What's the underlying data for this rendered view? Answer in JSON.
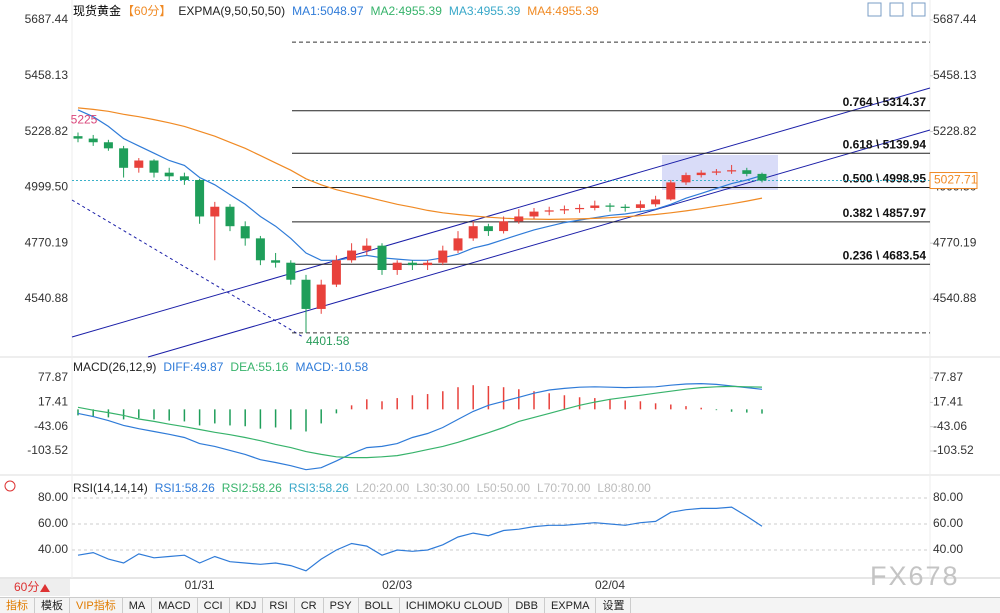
{
  "header": {
    "symbol": "现货黄金",
    "period": "【60分】"
  },
  "chart_data": [
    {
      "type": "candlestick",
      "title": "EXPMA(9,50,50,50)",
      "legend": [
        {
          "text": "MA1:5048.97",
          "color": "#2f7bd8"
        },
        {
          "text": "MA2:4955.39",
          "color": "#37b36b"
        },
        {
          "text": "MA3:4955.39",
          "color": "#39a8c9"
        },
        {
          "text": "MA4:4955.39",
          "color": "#f08a24"
        }
      ],
      "categories": [
        null,
        null,
        null,
        null,
        null,
        null,
        null,
        null,
        "01/31",
        null,
        null,
        null,
        null,
        null,
        null,
        null,
        null,
        null,
        null,
        null,
        null,
        "02/03",
        null,
        null,
        null,
        null,
        null,
        null,
        null,
        null,
        null,
        null,
        null,
        null,
        null,
        "02/04",
        null,
        null,
        null,
        null,
        null,
        null,
        null,
        null,
        null,
        null
      ],
      "ohlc": [
        [
          5210,
          5225,
          5185,
          5200
        ],
        [
          5200,
          5215,
          5170,
          5185
        ],
        [
          5185,
          5195,
          5150,
          5160
        ],
        [
          5160,
          5170,
          5040,
          5080
        ],
        [
          5080,
          5120,
          5060,
          5110
        ],
        [
          5110,
          5115,
          5040,
          5060
        ],
        [
          5060,
          5080,
          5030,
          5045
        ],
        [
          5045,
          5060,
          5010,
          5030
        ],
        [
          5030,
          5035,
          4850,
          4880
        ],
        [
          4880,
          4940,
          4700,
          4920
        ],
        [
          4920,
          4930,
          4820,
          4840
        ],
        [
          4840,
          4860,
          4760,
          4790
        ],
        [
          4790,
          4800,
          4680,
          4700
        ],
        [
          4700,
          4730,
          4670,
          4690
        ],
        [
          4690,
          4700,
          4600,
          4620
        ],
        [
          4620,
          4640,
          4401.58,
          4500
        ],
        [
          4500,
          4620,
          4480,
          4600
        ],
        [
          4600,
          4720,
          4590,
          4700
        ],
        [
          4700,
          4770,
          4690,
          4740
        ],
        [
          4740,
          4790,
          4720,
          4760
        ],
        [
          4760,
          4770,
          4640,
          4660
        ],
        [
          4660,
          4700,
          4640,
          4690
        ],
        [
          4690,
          4700,
          4660,
          4680
        ],
        [
          4680,
          4700,
          4660,
          4690
        ],
        [
          4690,
          4760,
          4680,
          4740
        ],
        [
          4740,
          4820,
          4730,
          4790
        ],
        [
          4790,
          4860,
          4780,
          4840
        ],
        [
          4840,
          4850,
          4800,
          4820
        ],
        [
          4820,
          4880,
          4810,
          4860
        ],
        [
          4860,
          4910,
          4850,
          4880
        ],
        [
          4880,
          4915,
          4870,
          4900
        ],
        [
          4900,
          4920,
          4885,
          4905
        ],
        [
          4905,
          4925,
          4890,
          4910
        ],
        [
          4910,
          4930,
          4895,
          4915
        ],
        [
          4915,
          4945,
          4905,
          4925
        ],
        [
          4925,
          4935,
          4900,
          4920
        ],
        [
          4920,
          4930,
          4900,
          4915
        ],
        [
          4915,
          4945,
          4905,
          4930
        ],
        [
          4930,
          4965,
          4920,
          4950
        ],
        [
          4950,
          5030,
          4945,
          5020
        ],
        [
          5020,
          5060,
          5010,
          5050
        ],
        [
          5050,
          5070,
          5040,
          5060
        ],
        [
          5060,
          5075,
          5050,
          5065
        ],
        [
          5065,
          5091.63,
          5055,
          5070
        ],
        [
          5070,
          5080,
          5045,
          5055
        ],
        [
          5055,
          5060,
          5020,
          5027.71
        ]
      ],
      "up_color": "#e8413b",
      "down_color": "#1f9e5a",
      "lines": [
        {
          "color": "#2f7bd8",
          "values": [
            5318,
            5290,
            5250,
            5200,
            5170,
            5140,
            5110,
            5090,
            5040,
            5010,
            4970,
            4930,
            4880,
            4840,
            4790,
            4730,
            4700,
            4700,
            4710,
            4720,
            4710,
            4705,
            4700,
            4700,
            4710,
            4725,
            4750,
            4765,
            4785,
            4805,
            4825,
            4840,
            4855,
            4865,
            4875,
            4885,
            4890,
            4900,
            4910,
            4930,
            4955,
            4975,
            4995,
            5015,
            5030,
            5048.97
          ]
        },
        {
          "color": "#f08a24",
          "values": [
            5326,
            5320,
            5312,
            5300,
            5290,
            5278,
            5265,
            5250,
            5230,
            5210,
            5185,
            5160,
            5130,
            5100,
            5070,
            5035,
            5010,
            4990,
            4975,
            4960,
            4945,
            4930,
            4918,
            4905,
            4895,
            4888,
            4882,
            4877,
            4873,
            4870,
            4869,
            4868,
            4869,
            4870,
            4872,
            4875,
            4879,
            4883,
            4888,
            4895,
            4903,
            4912,
            4922,
            4932,
            4943,
            4955.39
          ]
        }
      ],
      "ylim": [
        4310.7,
        5769.6
      ],
      "yticks": [
        5687.44,
        5458.13,
        5228.82,
        {
          "value": 4999.5,
          "label": "4999.50"
        },
        4770.19,
        4540.88
      ],
      "fibonacci": {
        "levels": [
          {
            "value": 5314.37,
            "label": "0.764 \\ 5314.37"
          },
          {
            "value": 5139.94,
            "label": "0.618 \\ 5139.94"
          },
          {
            "value": 4998.95,
            "label": "0.500 \\ 4998.95"
          },
          {
            "value": 4857.97,
            "label": "0.382 \\ 4857.97"
          },
          {
            "value": 4683.54,
            "label": "0.236 \\ 4683.54"
          }
        ],
        "range": [
          4401.58,
          5596.32
        ]
      }
    },
    {
      "type": "macd",
      "title": "MACD(26,12,9)",
      "legend": [
        {
          "text": "DIFF:49.87",
          "color": "#2f7bd8"
        },
        {
          "text": "DEA:55.16",
          "color": "#37b36b"
        },
        {
          "text": "MACD:-10.58",
          "color": "#2f7bd8"
        }
      ],
      "histogram": [
        -15,
        -18,
        -20,
        -25,
        -22,
        -25,
        -28,
        -30,
        -40,
        -35,
        -40,
        -42,
        -48,
        -45,
        -50,
        -55,
        -35,
        -10,
        10,
        25,
        20,
        28,
        35,
        38,
        45,
        55,
        60,
        58,
        55,
        50,
        45,
        40,
        35,
        30,
        28,
        25,
        22,
        20,
        15,
        12,
        8,
        4,
        -2,
        -6,
        -8,
        -10.58
      ],
      "up_color": "#e8413b",
      "down_color": "#1f9e5a",
      "lines": [
        {
          "color": "#2f7bd8",
          "values": [
            -10,
            -18,
            -28,
            -40,
            -48,
            -55,
            -62,
            -70,
            -85,
            -92,
            -102,
            -112,
            -125,
            -132,
            -140,
            -150,
            -145,
            -128,
            -110,
            -95,
            -92,
            -85,
            -70,
            -60,
            -45,
            -25,
            -5,
            10,
            20,
            30,
            40,
            48,
            52,
            55,
            56,
            55,
            54,
            55,
            56,
            60,
            63,
            64,
            62,
            58,
            54,
            49.87
          ]
        },
        {
          "color": "#37b36b",
          "values": [
            5,
            -2,
            -8,
            -15,
            -24,
            -30,
            -37,
            -43,
            -50,
            -57,
            -63,
            -70,
            -78,
            -87,
            -95,
            -105,
            -112,
            -118,
            -120,
            -120,
            -118,
            -115,
            -108,
            -100,
            -92,
            -82,
            -70,
            -58,
            -45,
            -30,
            -20,
            -10,
            0,
            10,
            18,
            25,
            30,
            35,
            40,
            45,
            50,
            54,
            56,
            57,
            56,
            55.16
          ]
        }
      ],
      "ylim": [
        -150.7,
        122.6
      ],
      "yticks": [
        77.87,
        17.41,
        -43.06,
        -103.52
      ]
    },
    {
      "type": "rsi",
      "title": "RSI(14,14,14)",
      "legend": [
        {
          "text": "RSI1:58.26",
          "color": "#2f7bd8"
        },
        {
          "text": "RSI2:58.26",
          "color": "#37b36b"
        },
        {
          "text": "RSI3:58.26",
          "color": "#39a8c9"
        },
        {
          "text": "L20:20.00",
          "color": "#bbbbbb"
        },
        {
          "text": "L30:30.00",
          "color": "#bbbbbb"
        },
        {
          "text": "L50:50.00",
          "color": "#bbbbbb"
        },
        {
          "text": "L70:70.00",
          "color": "#bbbbbb"
        },
        {
          "text": "L80:80.00",
          "color": "#bbbbbb"
        }
      ],
      "lines": [
        {
          "color": "#2f7bd8",
          "values": [
            36,
            38,
            33,
            30,
            37,
            34,
            35,
            36,
            30,
            35,
            31,
            30,
            29,
            30,
            28,
            24,
            33,
            40,
            45,
            43,
            36,
            40,
            39,
            40,
            44,
            50,
            53,
            51,
            55,
            56,
            58,
            59,
            59,
            60,
            61,
            60,
            59,
            61,
            62,
            69,
            71,
            72,
            72,
            73,
            66,
            58.26
          ]
        }
      ],
      "ylim": [
        18.5,
        93.8
      ],
      "yticks": [
        {
          "value": 80,
          "label": "80.00"
        },
        {
          "value": 60,
          "label": "60.00"
        },
        {
          "value": 40,
          "label": "40.00"
        }
      ],
      "grid": true
    }
  ],
  "footer": {
    "period": "60分",
    "watermark": "FX678",
    "toolbar": [
      "指标",
      "模板",
      "VIP指标",
      "MA",
      "MACD",
      "CCI",
      "KDJ",
      "RSI",
      "CR",
      "PSY",
      "BOLL",
      "ICHIMOKU CLOUD",
      "DBB",
      "EXPMA",
      "设置"
    ]
  }
}
